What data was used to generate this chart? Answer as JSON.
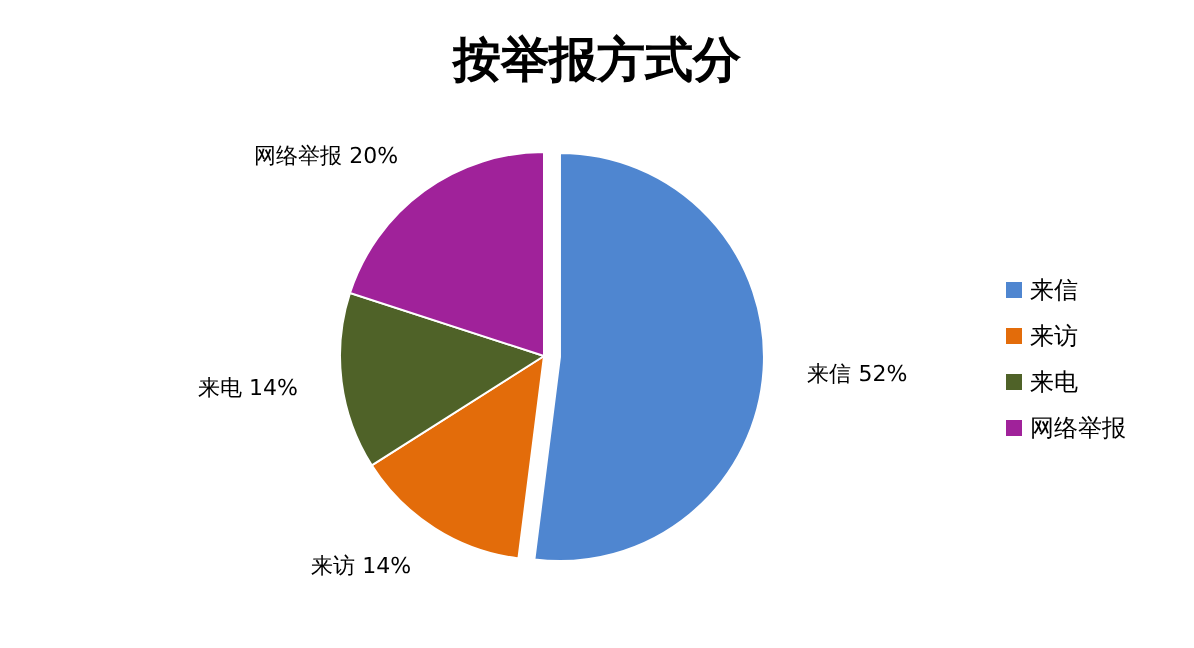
{
  "chart_data": {
    "type": "pie",
    "title": "按举报方式分",
    "categories": [
      "来信",
      "来访",
      "来电",
      "网络举报"
    ],
    "values": [
      52,
      14,
      14,
      20
    ],
    "value_labels": [
      "52%",
      "14%",
      "14%",
      "20%"
    ],
    "colors": [
      "#4f86d0",
      "#e36c0a",
      "#4f6228",
      "#a0229a"
    ],
    "legend": "right"
  }
}
